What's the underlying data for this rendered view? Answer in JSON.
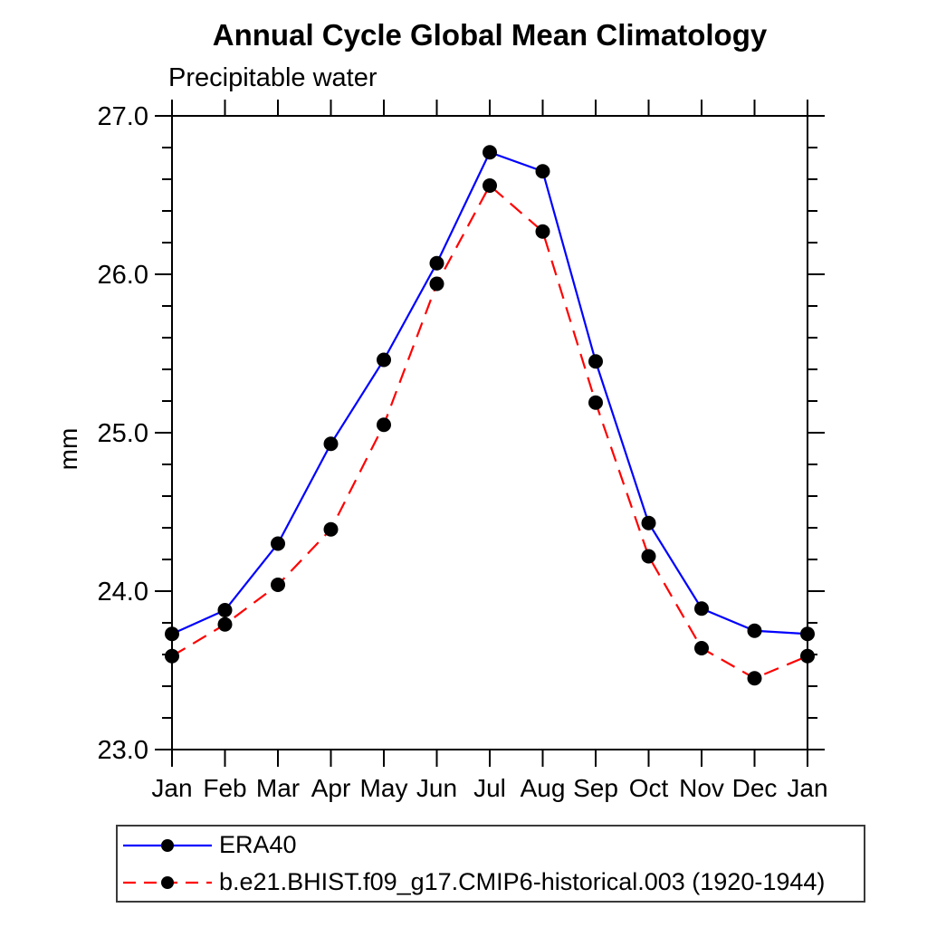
{
  "title": "Annual Cycle Global Mean Climatology",
  "subtitle": "Precipitable water",
  "y_axis_title": "mm",
  "accent_colors": {
    "series1": "#0000ff",
    "series2": "#ff0000",
    "marker": "#000000",
    "axis": "#000000"
  },
  "legend": {
    "entries": [
      {
        "label": "ERA40",
        "color": "#0000ff",
        "style": "solid"
      },
      {
        "label": "b.e21.BHIST.f09_g17.CMIP6-historical.003 (1920-1944)",
        "color": "#ff0000",
        "style": "dashed"
      }
    ]
  },
  "chart_data": {
    "type": "line",
    "title": "Annual Cycle Global Mean Climatology",
    "subtitle": "Precipitable water",
    "ylabel": "mm",
    "categories": [
      "Jan",
      "Feb",
      "Mar",
      "Apr",
      "May",
      "Jun",
      "Jul",
      "Aug",
      "Sep",
      "Oct",
      "Nov",
      "Dec",
      "Jan"
    ],
    "series": [
      {
        "name": "ERA40",
        "color": "#0000ff",
        "style": "solid",
        "marker": "circle",
        "marker_color": "#000000",
        "values": [
          23.73,
          23.88,
          24.3,
          24.93,
          25.46,
          26.07,
          26.77,
          26.65,
          25.45,
          24.43,
          23.89,
          23.75,
          23.73
        ]
      },
      {
        "name": "b.e21.BHIST.f09_g17.CMIP6-historical.003 (1920-1944)",
        "color": "#ff0000",
        "style": "dashed",
        "marker": "circle",
        "marker_color": "#000000",
        "values": [
          23.59,
          23.79,
          24.04,
          24.39,
          25.05,
          25.94,
          26.56,
          26.27,
          25.19,
          24.22,
          23.64,
          23.45,
          23.59
        ]
      }
    ],
    "ylim": [
      23.0,
      27.0
    ],
    "y_major_ticks": [
      23.0,
      24.0,
      25.0,
      26.0,
      27.0
    ],
    "y_tick_labels": [
      "23.0",
      "24.0",
      "25.0",
      "26.0",
      "27.0"
    ],
    "y_minor_step": 0.2,
    "grid": false,
    "legend_position": "bottom"
  }
}
